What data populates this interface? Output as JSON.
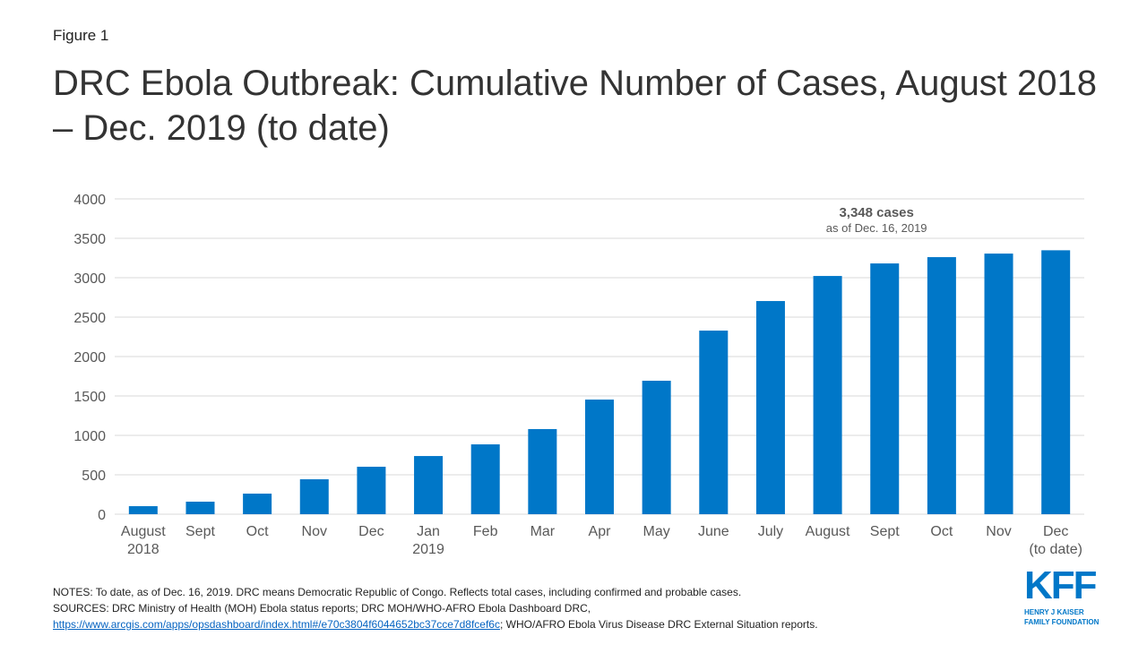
{
  "figure_label": "Figure 1",
  "chart_data": {
    "type": "bar",
    "title": "DRC Ebola Outbreak: Cumulative Number of Cases, August 2018 – Dec. 2019 (to date)",
    "categories": [
      [
        "August",
        "2018"
      ],
      [
        "Sept"
      ],
      [
        "Oct"
      ],
      [
        "Nov"
      ],
      [
        "Dec"
      ],
      [
        "Jan",
        "2019"
      ],
      [
        "Feb"
      ],
      [
        "Mar"
      ],
      [
        "Apr"
      ],
      [
        "May"
      ],
      [
        "June"
      ],
      [
        "July"
      ],
      [
        "August"
      ],
      [
        "Sept"
      ],
      [
        "Oct"
      ],
      [
        "Nov"
      ],
      [
        "Dec",
        "(to date)"
      ]
    ],
    "values": [
      102,
      159,
      261,
      443,
      602,
      738,
      886,
      1080,
      1454,
      1693,
      2329,
      2704,
      3022,
      3181,
      3261,
      3306,
      3348
    ],
    "ylim": [
      0,
      4000
    ],
    "yticks": [
      0,
      500,
      1000,
      1500,
      2000,
      2500,
      3000,
      3500,
      4000
    ],
    "grid": true,
    "bar_color": "#0077c8",
    "annotation": {
      "title": "3,348 cases",
      "subtitle": "as of Dec. 16, 2019",
      "category_index": 16
    }
  },
  "notes": "NOTES: To date, as of Dec. 16, 2019. DRC means Democratic Republic of Congo. Reflects total cases, including confirmed and probable cases.",
  "sources_line1": "SOURCES: DRC Ministry of Health (MOH) Ebola status reports; DRC MOH/WHO-AFRO Ebola Dashboard DRC,",
  "sources_link": "https://www.arcgis.com/apps/opsdashboard/index.html#/e70c3804f6044652bc37cce7d8fcef6c",
  "sources_line2_rest": ";  WHO/AFRO Ebola Virus Disease DRC External Situation reports.",
  "logo": {
    "mark": "KFF",
    "line1": "HENRY J KAISER",
    "line2": "FAMILY FOUNDATION"
  }
}
